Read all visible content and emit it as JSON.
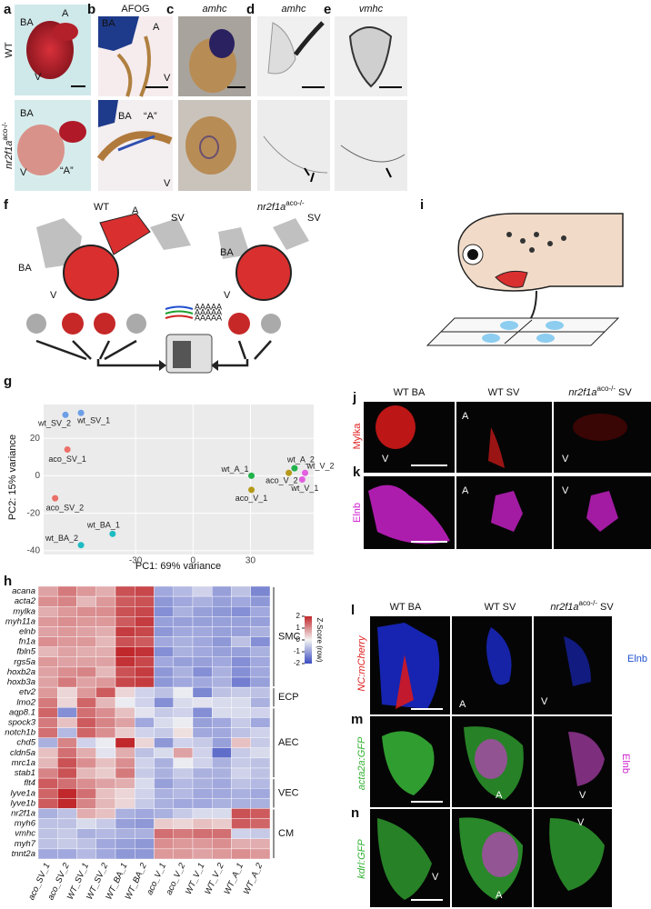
{
  "panels": {
    "a": {
      "letter": "a",
      "wt": "WT",
      "mutant": {
        "gene": "nr2f1a",
        "allele": "aco-/-"
      },
      "labels": [
        "BA",
        "A",
        "V",
        "BA",
        "V",
        "“A”"
      ]
    },
    "b": {
      "letter": "b",
      "stain": "AFOG",
      "labels": [
        "BA",
        "A",
        "V",
        "BA",
        "“A”",
        "V"
      ]
    },
    "c": {
      "letter": "c",
      "probe": "amhc"
    },
    "d": {
      "letter": "d",
      "probe": "amhc"
    },
    "e": {
      "letter": "e",
      "probe": "vmhc"
    },
    "f": {
      "letter": "f",
      "wt": "WT",
      "mutant": {
        "gene": "nr2f1a",
        "allele": "aco-/-"
      },
      "wt_labels": [
        "A",
        "BA",
        "SV",
        "V"
      ],
      "mutant_labels": [
        "SV",
        "BA",
        "V"
      ],
      "reads": [
        "AAAAA",
        "AAAAA",
        "AAAAA"
      ]
    },
    "g": {
      "letter": "g"
    },
    "h": {
      "letter": "h"
    },
    "i": {
      "letter": "i"
    },
    "j": {
      "letter": "j",
      "columns": [
        "WT BA",
        "WT SV",
        {
          "gene": "nr2f1a",
          "allele": "aco-/-",
          "suffix": "SV"
        }
      ],
      "stain": "Mylka",
      "labels": [
        "V",
        "A",
        "V"
      ]
    },
    "k": {
      "letter": "k",
      "stain": "Elnb",
      "labels": [
        "A",
        "V"
      ]
    },
    "l": {
      "letter": "l",
      "columns": [
        "WT BA",
        "WT SV",
        {
          "gene": "nr2f1a",
          "allele": "aco-/-",
          "suffix": "SV"
        }
      ],
      "reporter": "NC:mCherry",
      "stain": "Elnb",
      "labels": [
        "A",
        "V"
      ]
    },
    "m": {
      "letter": "m",
      "reporter": "acta2a:GFP",
      "stain": "Elnb",
      "labels": [
        "A",
        "V"
      ]
    },
    "n": {
      "letter": "n",
      "reporter": "kdrl:GFP",
      "labels": [
        "V",
        "A",
        "V"
      ]
    }
  },
  "chart_data": [
    {
      "type": "scatter",
      "xlabel": "PC1: 69% variance",
      "ylabel": "PC2: 15% variance",
      "xlim": [
        -78,
        63
      ],
      "ylim": [
        -42,
        38
      ],
      "xticks": [
        -30,
        0,
        30
      ],
      "yticks": [
        -40,
        -20,
        0,
        20
      ],
      "grid": true,
      "series": [
        {
          "name": "wt_SV_1",
          "color": "#6c9fe6",
          "x": [
            -58.5
          ],
          "values": [
            33.5
          ]
        },
        {
          "name": "wt_SV_2",
          "color": "#6c9fe6",
          "x": [
            -66.6
          ],
          "values": [
            32.5
          ]
        },
        {
          "name": "aco_SV_1",
          "color": "#ec6f68",
          "x": [
            -65.6
          ],
          "values": [
            14
          ]
        },
        {
          "name": "aco_SV_2",
          "color": "#ec6f68",
          "x": [
            -72
          ],
          "values": [
            -12
          ]
        },
        {
          "name": "wt_BA_1",
          "color": "#1cbcc2",
          "x": [
            -42
          ],
          "values": [
            -31
          ]
        },
        {
          "name": "wt_BA_2",
          "color": "#1cbcc2",
          "x": [
            -58.5
          ],
          "values": [
            -37
          ]
        },
        {
          "name": "wt_A_1",
          "color": "#21b24b",
          "x": [
            30.5
          ],
          "values": [
            0
          ]
        },
        {
          "name": "wt_A_2",
          "color": "#21b24b",
          "x": [
            53
          ],
          "values": [
            4
          ]
        },
        {
          "name": "aco_V_1",
          "color": "#b59a1a",
          "x": [
            30.5
          ],
          "values": [
            -7.5
          ]
        },
        {
          "name": "aco_V_2",
          "color": "#b59a1a",
          "x": [
            50
          ],
          "values": [
            1.5
          ]
        },
        {
          "name": "wt_V_1",
          "color": "#e25fe0",
          "x": [
            57
          ],
          "values": [
            -2
          ]
        },
        {
          "name": "wt_V_2",
          "color": "#e25fe0",
          "x": [
            58.5
          ],
          "values": [
            1.5
          ]
        }
      ]
    },
    {
      "type": "heatmap",
      "categories": [
        "aco_SV_1",
        "aco_SV_2",
        "WT_SV_1",
        "WT_SV_2",
        "WT_BA_1",
        "WT_BA_2",
        "aco_V_1",
        "aco_V_2",
        "WT_V_1",
        "WT_V_2",
        "WT_A_1",
        "WT_A_2"
      ],
      "rows": [
        "acana",
        "acta2",
        "mylka",
        "myh11a",
        "elnb",
        "fn1a",
        "fbln5",
        "rgs5a",
        "hoxb2a",
        "hoxb3a",
        "etv2",
        "lmo2",
        "aqp8.1",
        "spock3",
        "notch1b",
        "chd5",
        "cldn5a",
        "mrc1a",
        "stab1",
        "flt4",
        "lyve1a",
        "lyve1b",
        "nr2f1a",
        "myh6",
        "vmhc",
        "myh7",
        "tnnt2a"
      ],
      "row_groups": [
        "SMC",
        "SMC",
        "SMC",
        "SMC",
        "SMC",
        "SMC",
        "SMC",
        "SMC",
        "SMC",
        "SMC",
        "ECP",
        "ECP",
        "AEC",
        "AEC",
        "AEC",
        "AEC",
        "AEC",
        "AEC",
        "AEC",
        "VEC",
        "VEC",
        "VEC",
        "CM",
        "CM",
        "CM",
        "CM",
        "CM"
      ],
      "values": [
        [
          0.8,
          1.2,
          0.9,
          0.7,
          1.6,
          1.7,
          -0.9,
          -0.7,
          -0.4,
          -1.0,
          -0.6,
          -1.3
        ],
        [
          1.0,
          1.1,
          0.6,
          0.9,
          1.5,
          1.6,
          -1.1,
          -0.9,
          -0.8,
          -1.0,
          -0.9,
          -1.1
        ],
        [
          0.7,
          0.9,
          1.0,
          1.0,
          1.6,
          1.7,
          -1.2,
          -0.8,
          -1.0,
          -1.1,
          -1.2,
          -0.9
        ],
        [
          0.9,
          1.0,
          0.9,
          0.9,
          1.5,
          1.8,
          -1.0,
          -1.0,
          -1.0,
          -1.0,
          -1.0,
          -1.0
        ],
        [
          0.8,
          0.9,
          0.8,
          0.7,
          1.8,
          1.7,
          -1.1,
          -0.9,
          -0.9,
          -1.0,
          -1.0,
          -0.8
        ],
        [
          1.0,
          0.9,
          0.9,
          0.6,
          1.6,
          1.5,
          -0.9,
          -0.8,
          -0.9,
          -1.1,
          -0.6,
          -1.2
        ],
        [
          0.6,
          0.8,
          0.7,
          0.7,
          2.0,
          1.9,
          -1.2,
          -0.8,
          -0.9,
          -1.0,
          -1.0,
          -0.8
        ],
        [
          0.9,
          0.8,
          0.8,
          0.8,
          1.9,
          1.7,
          -0.9,
          -1.0,
          -1.0,
          -0.9,
          -1.2,
          -0.9
        ],
        [
          0.8,
          1.0,
          1.1,
          0.6,
          1.6,
          1.8,
          -1.1,
          -0.8,
          -1.2,
          -0.8,
          -1.2,
          -0.9
        ],
        [
          0.8,
          1.2,
          0.8,
          0.9,
          1.7,
          1.8,
          -1.1,
          -0.9,
          -0.9,
          -0.8,
          -1.4,
          -1.0
        ],
        [
          0.9,
          0.3,
          0.9,
          1.5,
          0.3,
          -0.4,
          -0.6,
          -0.1,
          -1.3,
          -0.6,
          -0.5,
          -0.6
        ],
        [
          1.2,
          0.3,
          1.4,
          0.6,
          -0.1,
          -0.4,
          -1.2,
          -0.3,
          -0.2,
          -0.3,
          -0.3,
          -0.8
        ],
        [
          1.4,
          -1.2,
          1.3,
          1.0,
          0.5,
          -0.2,
          -0.5,
          -0.4,
          -1.2,
          -0.3,
          -0.3,
          -0.4
        ],
        [
          1.2,
          0.5,
          1.5,
          1.1,
          0.8,
          -0.9,
          -0.3,
          -0.1,
          -1.0,
          -0.9,
          -0.5,
          -0.9
        ],
        [
          1.3,
          -0.7,
          1.4,
          1.0,
          0.4,
          -0.4,
          -0.5,
          0.2,
          -0.9,
          -0.9,
          -0.6,
          -0.4
        ],
        [
          -0.8,
          1.1,
          -0.4,
          -0.1,
          2.0,
          0.3,
          -1.1,
          -0.4,
          -0.5,
          -1.0,
          0.5,
          -0.5
        ],
        [
          0.5,
          1.3,
          0.7,
          -0.2,
          0.7,
          -0.6,
          -0.3,
          0.8,
          -0.4,
          -1.6,
          -0.5,
          -0.3
        ],
        [
          0.6,
          1.6,
          1.0,
          0.5,
          1.0,
          -0.4,
          -0.8,
          -0.1,
          -0.4,
          -0.8,
          -0.5,
          -0.6
        ],
        [
          1.1,
          1.6,
          0.6,
          0.4,
          1.2,
          -0.5,
          -0.8,
          -0.5,
          -0.8,
          -0.8,
          -0.4,
          -0.6
        ],
        [
          1.5,
          1.3,
          1.0,
          0.8,
          0.7,
          -0.3,
          -1.0,
          -0.7,
          -0.8,
          -0.9,
          -0.6,
          -0.7
        ],
        [
          1.4,
          2.0,
          1.3,
          0.5,
          0.3,
          -0.4,
          -0.8,
          -0.7,
          -0.9,
          -0.9,
          -0.8,
          -0.9
        ],
        [
          1.5,
          2.0,
          1.1,
          0.6,
          0.3,
          -0.5,
          -0.8,
          -0.9,
          -0.9,
          -0.8,
          -0.8,
          -0.8
        ],
        [
          -0.8,
          -0.6,
          0.7,
          0.5,
          -0.8,
          -0.9,
          -0.8,
          -0.5,
          -0.3,
          -0.3,
          1.6,
          1.5
        ],
        [
          -0.6,
          -0.6,
          -0.3,
          -0.5,
          -1.0,
          -1.1,
          0.4,
          0.3,
          0.5,
          0.4,
          1.5,
          1.4
        ],
        [
          -0.6,
          -0.5,
          -0.8,
          -0.7,
          -0.8,
          -0.8,
          1.3,
          1.2,
          1.3,
          1.3,
          -0.4,
          -0.5
        ],
        [
          -0.6,
          -0.5,
          -0.6,
          -0.9,
          -1.0,
          -1.1,
          1.0,
          0.9,
          0.9,
          1.0,
          0.7,
          0.7
        ],
        [
          -0.9,
          -0.9,
          -0.7,
          -0.9,
          -1.1,
          -1.1,
          0.9,
          0.9,
          0.8,
          0.9,
          1.0,
          0.9
        ]
      ],
      "colorbar": {
        "title": "Z-Score (row)",
        "lim": [
          -2,
          2
        ],
        "ticks": [
          2,
          1,
          0,
          -1,
          -2
        ],
        "colors": [
          "#3b4cc0",
          "#f4f4f4",
          "#c0282c"
        ]
      }
    }
  ]
}
